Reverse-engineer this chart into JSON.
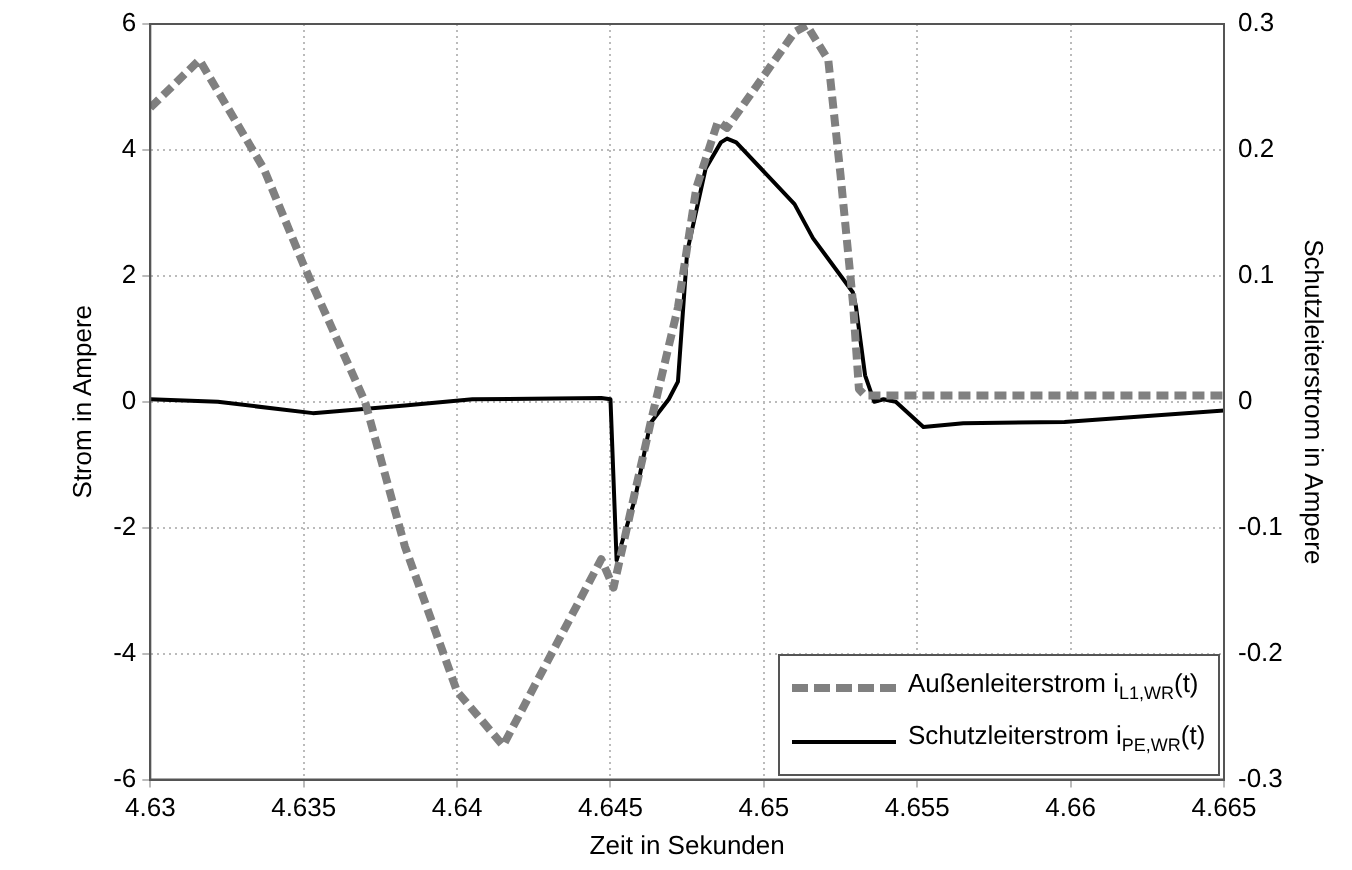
{
  "chart_data": {
    "type": "line",
    "xlabel": "Zeit in Sekunden",
    "ylabel": "Strom in Ampere",
    "y2label": "Schutzleiterstrom in Ampere",
    "xlim": [
      4.63,
      4.665
    ],
    "xticks": [
      4.63,
      4.635,
      4.64,
      4.645,
      4.65,
      4.655,
      4.66,
      4.665
    ],
    "ylim": [
      -6,
      6
    ],
    "yticks": [
      -6,
      -4,
      -2,
      0,
      2,
      4,
      6
    ],
    "y2lim": [
      -0.3,
      0.3
    ],
    "y2ticks": [
      -0.3,
      -0.2,
      -0.1,
      0,
      0.1,
      0.2,
      0.3
    ],
    "grid": true,
    "legend": "bottom right",
    "marker": "none",
    "series": [
      {
        "name": "Außenleiterstrom i$_{L1,WR}$(t)",
        "color": "#808080",
        "line_style": "dashed",
        "x": [
          4.63,
          4.6316,
          4.6337,
          4.635,
          4.637,
          4.6383,
          4.64,
          4.6415,
          4.6447,
          4.6451,
          4.6463,
          4.6472,
          4.6478,
          4.6485,
          4.6488,
          4.651,
          4.6514,
          4.6521,
          4.6525,
          4.6529,
          4.6531,
          4.6533,
          4.6545,
          4.665
        ],
        "values": [
          4.67,
          5.43,
          3.7,
          2.17,
          0,
          -2.3,
          -4.6,
          -5.46,
          -2.5,
          -2.95,
          -0.35,
          1.5,
          3.4,
          4.45,
          4.35,
          5.87,
          5.98,
          5.43,
          3.6,
          1.6,
          0.2,
          0.1,
          0.1,
          0.1
        ]
      },
      {
        "name": "Schutzleiterstrom i$_{PE,WR}$(t)",
        "color": "#000000",
        "line_style": "solid",
        "axis": "y2",
        "x": [
          4.63,
          4.6322,
          4.6353,
          4.6383,
          4.6405,
          4.6447,
          4.645,
          4.6452,
          4.6458,
          4.6463,
          4.6469,
          4.6472,
          4.6475,
          4.6481,
          4.6486,
          4.6488,
          4.6491,
          4.651,
          4.6516,
          4.6529,
          4.653,
          4.6533,
          4.6536,
          4.6539,
          4.6543,
          4.6552,
          4.6565,
          4.6598,
          4.665
        ],
        "values": [
          0.002,
          0,
          -0.009,
          -0.003,
          0.002,
          0.003,
          0.002,
          -0.126,
          -0.077,
          -0.017,
          0.002,
          0.016,
          0.119,
          0.185,
          0.206,
          0.209,
          0.206,
          0.157,
          0.13,
          0.087,
          0.076,
          0.021,
          0,
          0.002,
          0,
          -0.02,
          -0.017,
          -0.016,
          -0.007
        ]
      }
    ]
  }
}
